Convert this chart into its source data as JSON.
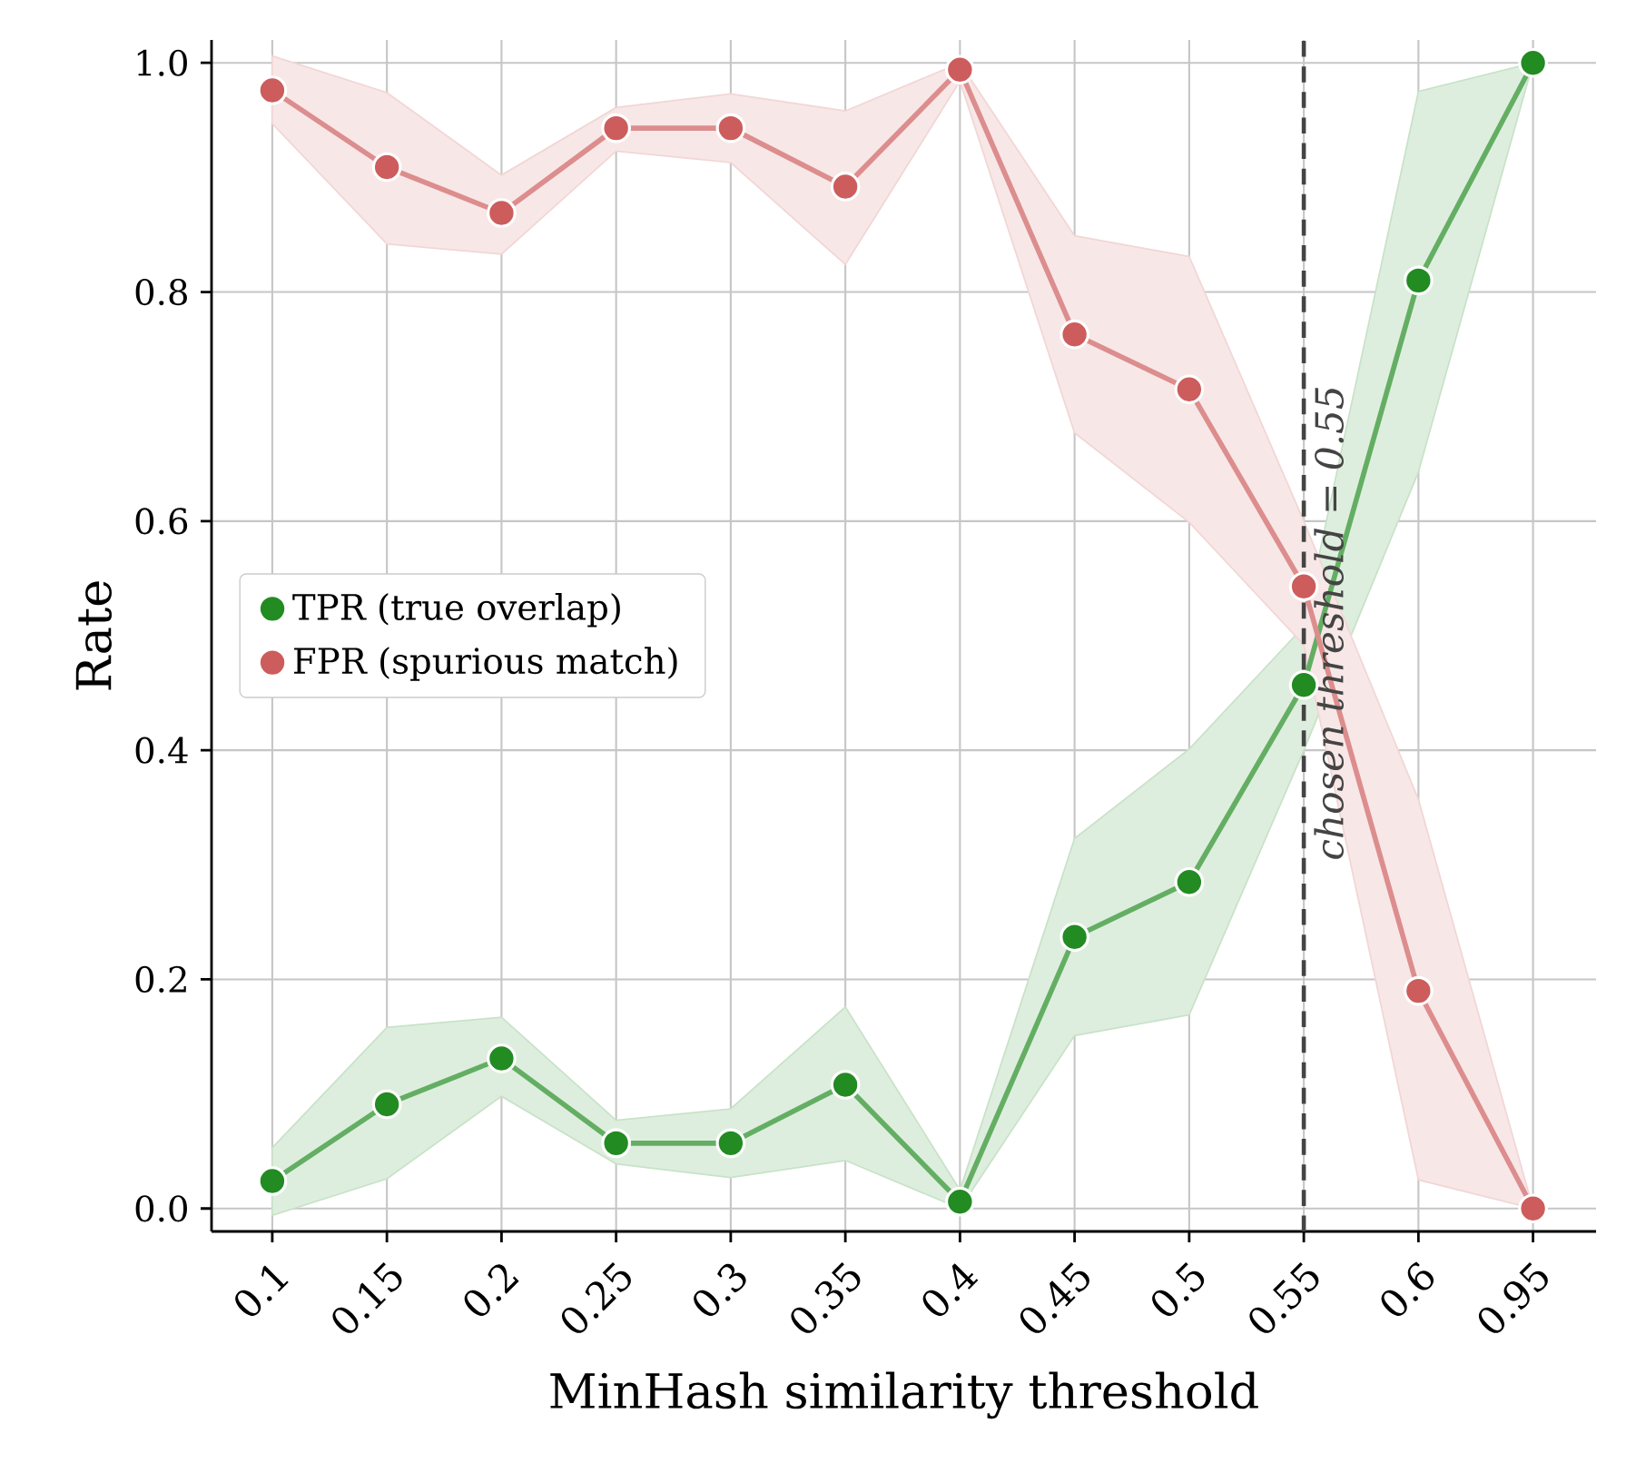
{
  "chart_data": {
    "type": "line",
    "xlabel": "MinHash similarity threshold",
    "ylabel": "Rate",
    "categories": [
      "0.1",
      "0.15",
      "0.2",
      "0.25",
      "0.3",
      "0.35",
      "0.4",
      "0.45",
      "0.5",
      "0.55",
      "0.6",
      "0.95"
    ],
    "series": [
      {
        "name": "TPR (true overlap)",
        "color": "#228b22",
        "values": [
          0.024,
          0.091,
          0.131,
          0.057,
          0.057,
          0.108,
          0.006,
          0.237,
          0.285,
          0.457,
          0.81,
          1.0
        ],
        "lower": [
          -0.006,
          0.026,
          0.098,
          0.039,
          0.027,
          0.042,
          0.0,
          0.151,
          0.169,
          0.4,
          0.643,
          1.0
        ],
        "upper": [
          0.053,
          0.158,
          0.167,
          0.077,
          0.087,
          0.176,
          0.016,
          0.323,
          0.401,
          0.508,
          0.975,
          1.0
        ]
      },
      {
        "name": "FPR (spurious match)",
        "color": "#cd5c5c",
        "values": [
          0.976,
          0.909,
          0.869,
          0.943,
          0.943,
          0.892,
          0.994,
          0.763,
          0.715,
          0.543,
          0.19,
          0.0
        ],
        "lower": [
          0.947,
          0.842,
          0.833,
          0.923,
          0.913,
          0.824,
          0.984,
          0.677,
          0.599,
          0.492,
          0.025,
          0.0
        ],
        "upper": [
          1.006,
          0.974,
          0.902,
          0.961,
          0.973,
          0.958,
          1.0,
          0.849,
          0.831,
          0.6,
          0.357,
          0.0
        ]
      }
    ],
    "ylim": [
      -0.02,
      1.02
    ],
    "yticks": [
      {
        "value": 0,
        "label": "0.0"
      },
      {
        "value": 0.2,
        "label": "0.2"
      },
      {
        "value": 0.4,
        "label": "0.4"
      },
      {
        "value": 0.6,
        "label": "0.6"
      },
      {
        "value": 0.8,
        "label": "0.8"
      },
      {
        "value": 1.0,
        "label": "1.0"
      }
    ],
    "ref_lines": [
      {
        "axis": "x",
        "value": "0.55",
        "label": "chosen threshold = 0.55",
        "color": "#444444",
        "line_style": "dashed"
      }
    ],
    "grid": true,
    "legend": "left",
    "marker": "circle",
    "line_style": "solid"
  }
}
